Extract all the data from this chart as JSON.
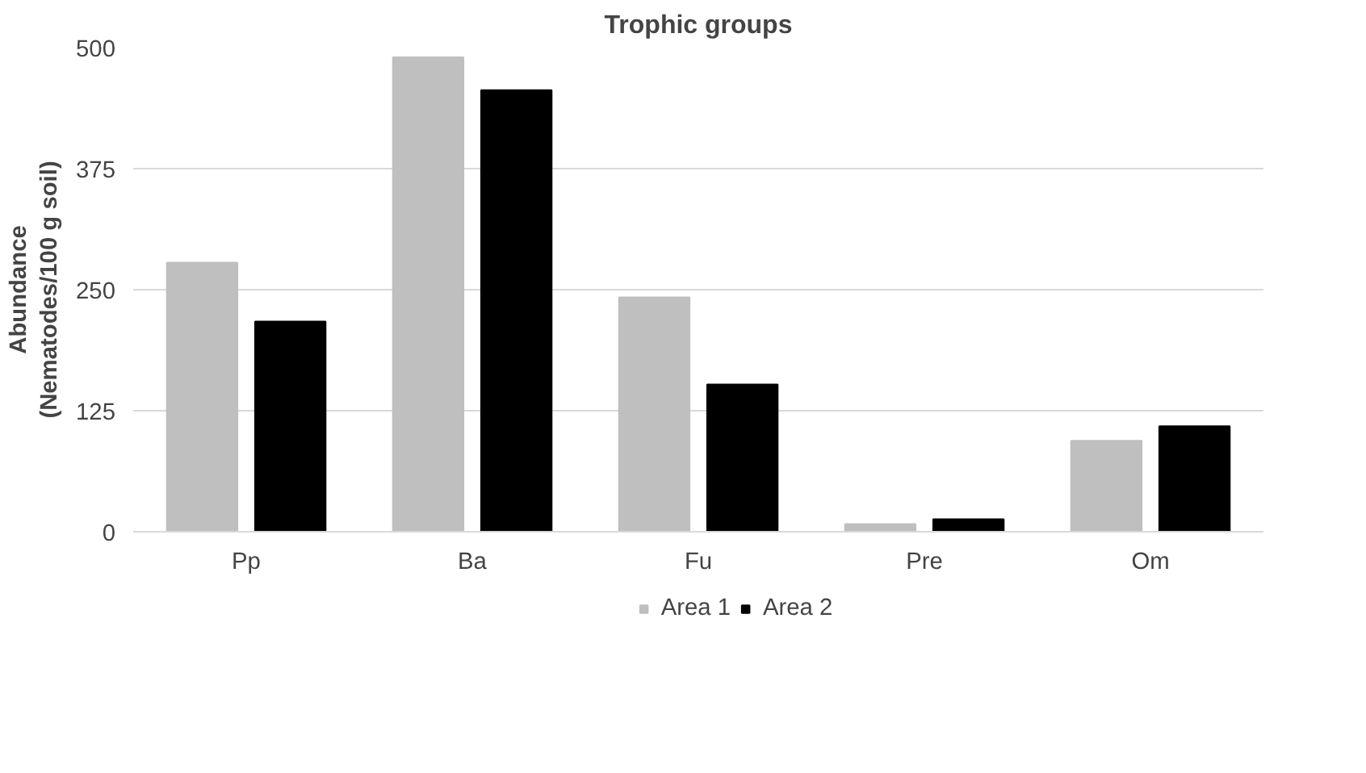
{
  "chart_data": {
    "type": "bar",
    "title": "Trophic groups",
    "ylabel": "Abundance\n(Nematodes/100 g soil)",
    "categories": [
      "Pp",
      "Ba",
      "Fu",
      "Pre",
      "Om"
    ],
    "series": [
      {
        "name": "Area 1",
        "color": "#bfbfbf",
        "values": [
          278,
          490,
          242,
          8,
          94
        ]
      },
      {
        "name": "Area 2",
        "color": "#000000",
        "values": [
          217,
          456,
          152,
          13,
          109
        ]
      }
    ],
    "ylim": [
      0,
      500
    ],
    "yticks": [
      0,
      125,
      250,
      375,
      500
    ],
    "grid": "y",
    "legend": "bottom"
  }
}
